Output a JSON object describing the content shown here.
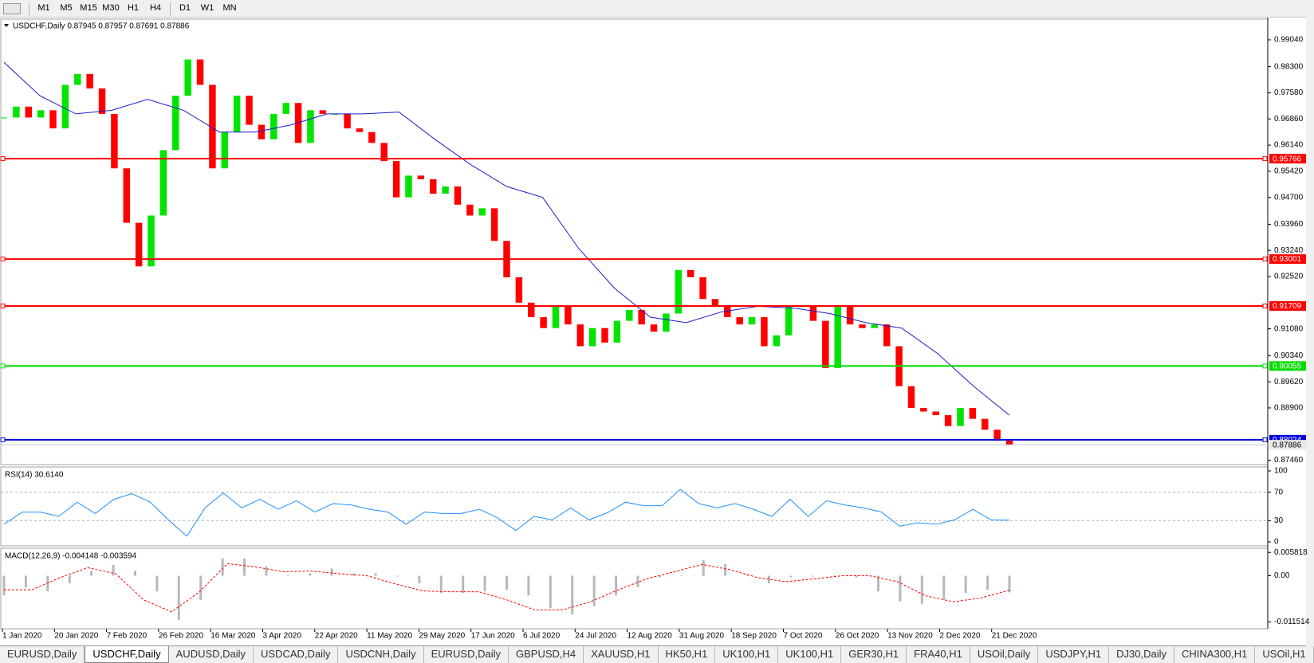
{
  "toolbar": {
    "timeframes": [
      "M1",
      "M5",
      "M15",
      "M30",
      "H1",
      "H4",
      "D1",
      "W1",
      "MN"
    ]
  },
  "main_chart": {
    "type": "candlestick",
    "title": "USDCHF,Daily  0.87945 0.87957 0.87691 0.87886",
    "closes": [
      0.969,
      0.972,
      0.969,
      0.971,
      0.966,
      0.978,
      0.981,
      0.977,
      0.97,
      0.955,
      0.94,
      0.928,
      0.942,
      0.96,
      0.975,
      0.985,
      0.978,
      0.955,
      0.965,
      0.975,
      0.967,
      0.963,
      0.97,
      0.973,
      0.962,
      0.971,
      0.97,
      0.97,
      0.966,
      0.965,
      0.962,
      0.957,
      0.947,
      0.953,
      0.952,
      0.948,
      0.95,
      0.945,
      0.942,
      0.944,
      0.935,
      0.925,
      0.918,
      0.914,
      0.911,
      0.917,
      0.912,
      0.906,
      0.911,
      0.907,
      0.913,
      0.916,
      0.912,
      0.91,
      0.915,
      0.927,
      0.925,
      0.919,
      0.917,
      0.914,
      0.912,
      0.914,
      0.906,
      0.909,
      0.917,
      0.917,
      0.913,
      0.9,
      0.917,
      0.912,
      0.911,
      0.912,
      0.906,
      0.895,
      0.889,
      0.888,
      0.887,
      0.884,
      0.889,
      0.886,
      0.883,
      0.88,
      0.87886
    ],
    "up_color": "#00e400",
    "down_color": "#ff0000",
    "ma": {
      "color": "#1c1cc8",
      "values": [
        0.9842,
        0.975,
        0.97,
        0.971,
        0.974,
        0.971,
        0.965,
        0.965,
        0.967,
        0.97,
        0.97,
        0.9705,
        0.963,
        0.956,
        0.95,
        0.947,
        0.933,
        0.922,
        0.914,
        0.9125,
        0.9155,
        0.917,
        0.9165,
        0.915,
        0.9125,
        0.911,
        0.904,
        0.895,
        0.887
      ]
    },
    "ylim": [
      0.8734,
      0.9961
    ],
    "yticks": [
      {
        "value": 0.9904,
        "label": "0.99040"
      },
      {
        "value": 0.983,
        "label": "0.98300"
      },
      {
        "value": 0.9758,
        "label": "0.97580"
      },
      {
        "value": 0.9686,
        "label": "0.96860"
      },
      {
        "value": 0.9614,
        "label": "0.96140"
      },
      {
        "value": 0.9542,
        "label": "0.95420"
      },
      {
        "value": 0.947,
        "label": "0.94700"
      },
      {
        "value": 0.9396,
        "label": "0.93960"
      },
      {
        "value": 0.9324,
        "label": "0.93240"
      },
      {
        "value": 0.9252,
        "label": "0.92520"
      },
      {
        "value": 0.9108,
        "label": "0.91080"
      },
      {
        "value": 0.9034,
        "label": "0.90340"
      },
      {
        "value": 0.8962,
        "label": "0.89620"
      },
      {
        "value": 0.889,
        "label": "0.88900"
      },
      {
        "value": 0.8746,
        "label": "0.87460"
      }
    ],
    "levels": [
      {
        "value": 0.95766,
        "color": "#ff0000"
      },
      {
        "value": 0.93001,
        "color": "#ff0000"
      },
      {
        "value": 0.91709,
        "color": "#ff0000"
      },
      {
        "value": 0.90055,
        "color": "#00dd00"
      },
      {
        "value": 0.88024,
        "color": "#0000dd"
      }
    ],
    "last_price": 0.87886,
    "dates": [
      "1 Jan 2020",
      "20 Jan 2020",
      "7 Feb 2020",
      "26 Feb 2020",
      "16 Mar 2020",
      "3 Apr 2020",
      "22 Apr 2020",
      "11 May 2020",
      "29 May 2020",
      "17 Jun 2020",
      "6 Jul 2020",
      "24 Jul 2020",
      "12 Aug 2020",
      "31 Aug 2020",
      "18 Sep 2020",
      "7 Oct 2020",
      "26 Oct 2020",
      "13 Nov 2020",
      "2 Dec 2020",
      "21 Dec 2020"
    ]
  },
  "rsi": {
    "type": "line",
    "title": "RSI(14) 30.6140",
    "color": "#1e90ff",
    "values": [
      25,
      42,
      42,
      36,
      56,
      40,
      60,
      68,
      56,
      31,
      8,
      48,
      69,
      48,
      60,
      46,
      58,
      42,
      54,
      52,
      46,
      42,
      25,
      42,
      40,
      40,
      46,
      34,
      16,
      36,
      31,
      48,
      31,
      41,
      56,
      51,
      51,
      74,
      54,
      48,
      54,
      46,
      36,
      60,
      36,
      58,
      52,
      48,
      42,
      22,
      27,
      25,
      31,
      46,
      31,
      30.6
    ],
    "ylim": [
      -5.6,
      105.6
    ],
    "yticks": [
      100,
      70,
      30,
      0
    ],
    "levels": [
      70,
      30
    ]
  },
  "macd": {
    "type": "bar",
    "title": "MACD(12,26,9) -0.004148 -0.003594",
    "hist_color": "#b8b8b8",
    "signal_color": "#ff0000",
    "main": [
      -0.0049,
      -0.0029,
      -0.0039,
      -0.0019,
      0.0012,
      0.0027,
      0.0012,
      -0.0039,
      -0.0111,
      -0.006,
      0.0043,
      0.0043,
      0.0023,
      0.0002,
      0.0006,
      0.0018,
      0.0006,
      0.0006,
      -0.0002,
      -0.0019,
      -0.0043,
      -0.0043,
      -0.0039,
      -0.0035,
      -0.0049,
      -0.008,
      -0.0097,
      -0.0076,
      -0.0049,
      -0.0029,
      -0.0004,
      0.0002,
      0.0039,
      0.0029,
      0.0002,
      -0.0019,
      -0.0004,
      -0.0002,
      0.0002,
      -0.0004,
      -0.0039,
      -0.0064,
      -0.007,
      -0.006,
      -0.0043,
      -0.0035,
      -0.004148
    ],
    "signal": [
      -0.0035,
      -0.0035,
      -0.0005,
      0.002,
      0.0005,
      -0.006,
      -0.009,
      -0.004,
      0.003,
      0.0022,
      0.001,
      0.0012,
      0.0005,
      0,
      -0.002,
      -0.0038,
      -0.004,
      -0.004,
      -0.006,
      -0.0085,
      -0.0085,
      -0.0065,
      -0.0035,
      -0.0008,
      0.001,
      0.0028,
      0.0015,
      -0.0005,
      -0.0015,
      -0.0008,
      0,
      0,
      -0.0015,
      -0.005,
      -0.0065,
      -0.0055,
      -0.003594
    ],
    "ylim": [
      -0.01322,
      0.006855
    ],
    "yticks": [
      0.005818,
      {
        "value": 0,
        "label": "0.00"
      },
      -0.011514
    ]
  },
  "tabs": {
    "items": [
      "EURUSD,Daily",
      "USDCHF,Daily",
      "AUDUSD,Daily",
      "USDCAD,Daily",
      "USDCNH,Daily",
      "EURUSD,Daily",
      "GBPUSD,H4",
      "XAUUSD,H1",
      "HK50,H1",
      "UK100,H1",
      "UK100,H1",
      "GER30,H1",
      "FRA40,H1",
      "USOil,Daily",
      "USDJPY,H1",
      "DJ30,Daily",
      "CHINA300,H1",
      "USOil,H1"
    ],
    "active": 1
  }
}
